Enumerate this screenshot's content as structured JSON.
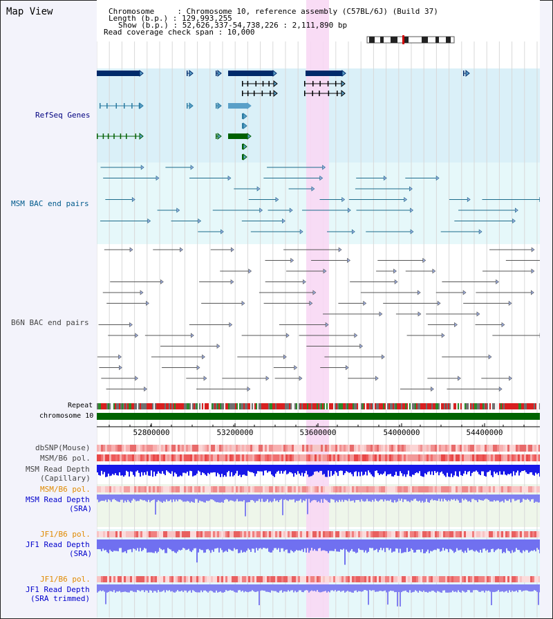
{
  "header": {
    "title": "Map View",
    "chromosome_line": "Chromosome     : Chromosome 10, reference assembly (C57BL/6J) (Build 37)",
    "length_line": "Length (b.p.) : 129,993,255",
    "show_line": "Show (b.p.) : 52,626,337-54,738,226 : 2,111,890 bp",
    "coverage_line": "Read coverage check span : 10,000"
  },
  "tracks": {
    "refseq": "RefSeq Genes",
    "msm_bac": "MSM BAC end pairs",
    "b6n_bac": "B6N BAC end pairs",
    "repeat": "Repeat",
    "chromosome": "chromosome 10",
    "dbsnp": "dbSNP(Mouse)",
    "msm_b6_pol_1": "MSM/B6 pol.",
    "msm_depth_cap_1": "MSM Read Depth",
    "msm_depth_cap_2": "(Capillary)",
    "msm_b6_pol_2": "MSM/B6 pol.",
    "msm_depth_sra_1": "MSM Read Depth",
    "msm_depth_sra_2": "(SRA)",
    "jf1_pol_1": "JF1/B6 pol.",
    "jf1_depth_sra_1": "JF1 Read Depth",
    "jf1_depth_sra_2": "(SRA)",
    "jf1_pol_2": "JF1/B6 pol.",
    "jf1_depth_trim_1": "JF1 Read Depth",
    "jf1_depth_trim_2": "(SRA trimmed)"
  },
  "axis": {
    "ticks": [
      "52800000",
      "53200000",
      "53600000",
      "54000000",
      "54400000"
    ]
  },
  "colors": {
    "refseq_label": "#000080",
    "msm_label": "#005a8c",
    "b6n_label": "#444444",
    "orange_label": "#e08a00",
    "blue_label": "#0000cc",
    "highlight": "#f8d8f4",
    "chromosome_bar": "#006400"
  }
}
